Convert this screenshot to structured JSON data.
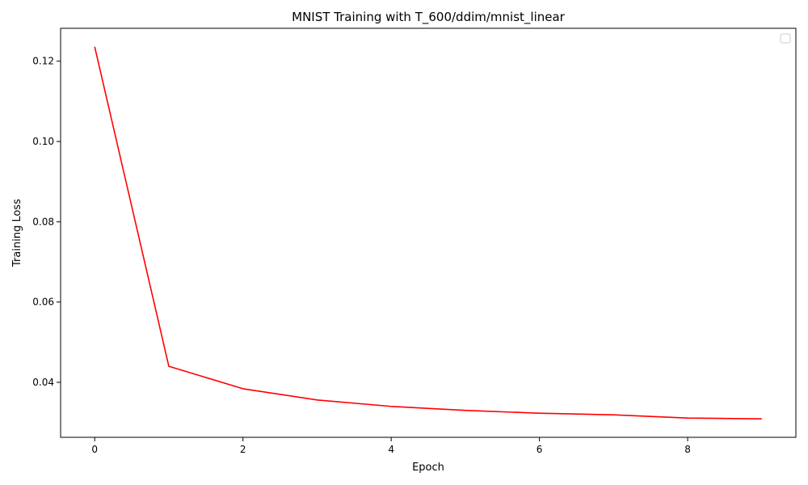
{
  "chart_data": {
    "type": "line",
    "title": "MNIST Training with T_600/ddim/mnist_linear",
    "xlabel": "Epoch",
    "ylabel": "Training Loss",
    "x": [
      0,
      1,
      2,
      3,
      4,
      5,
      6,
      7,
      8,
      9
    ],
    "series": [
      {
        "values": [
          0.1236,
          0.044,
          0.0384,
          0.0356,
          0.034,
          0.033,
          0.0323,
          0.0319,
          0.0311,
          0.0309
        ],
        "color": "#ff0000"
      }
    ],
    "xlim": [
      -0.46,
      9.46
    ],
    "ylim": [
      0.0263,
      0.1282
    ],
    "xticks": [
      0,
      2,
      4,
      6,
      8
    ],
    "yticks": [
      0.04,
      0.06,
      0.08,
      0.1,
      0.12
    ],
    "xtick_labels": [
      "0",
      "2",
      "4",
      "6",
      "8"
    ],
    "ytick_labels": [
      "0.04",
      "0.06",
      "0.08",
      "0.10",
      "0.12"
    ],
    "grid": false,
    "legend": {
      "placement": "top-right",
      "entries": []
    }
  }
}
